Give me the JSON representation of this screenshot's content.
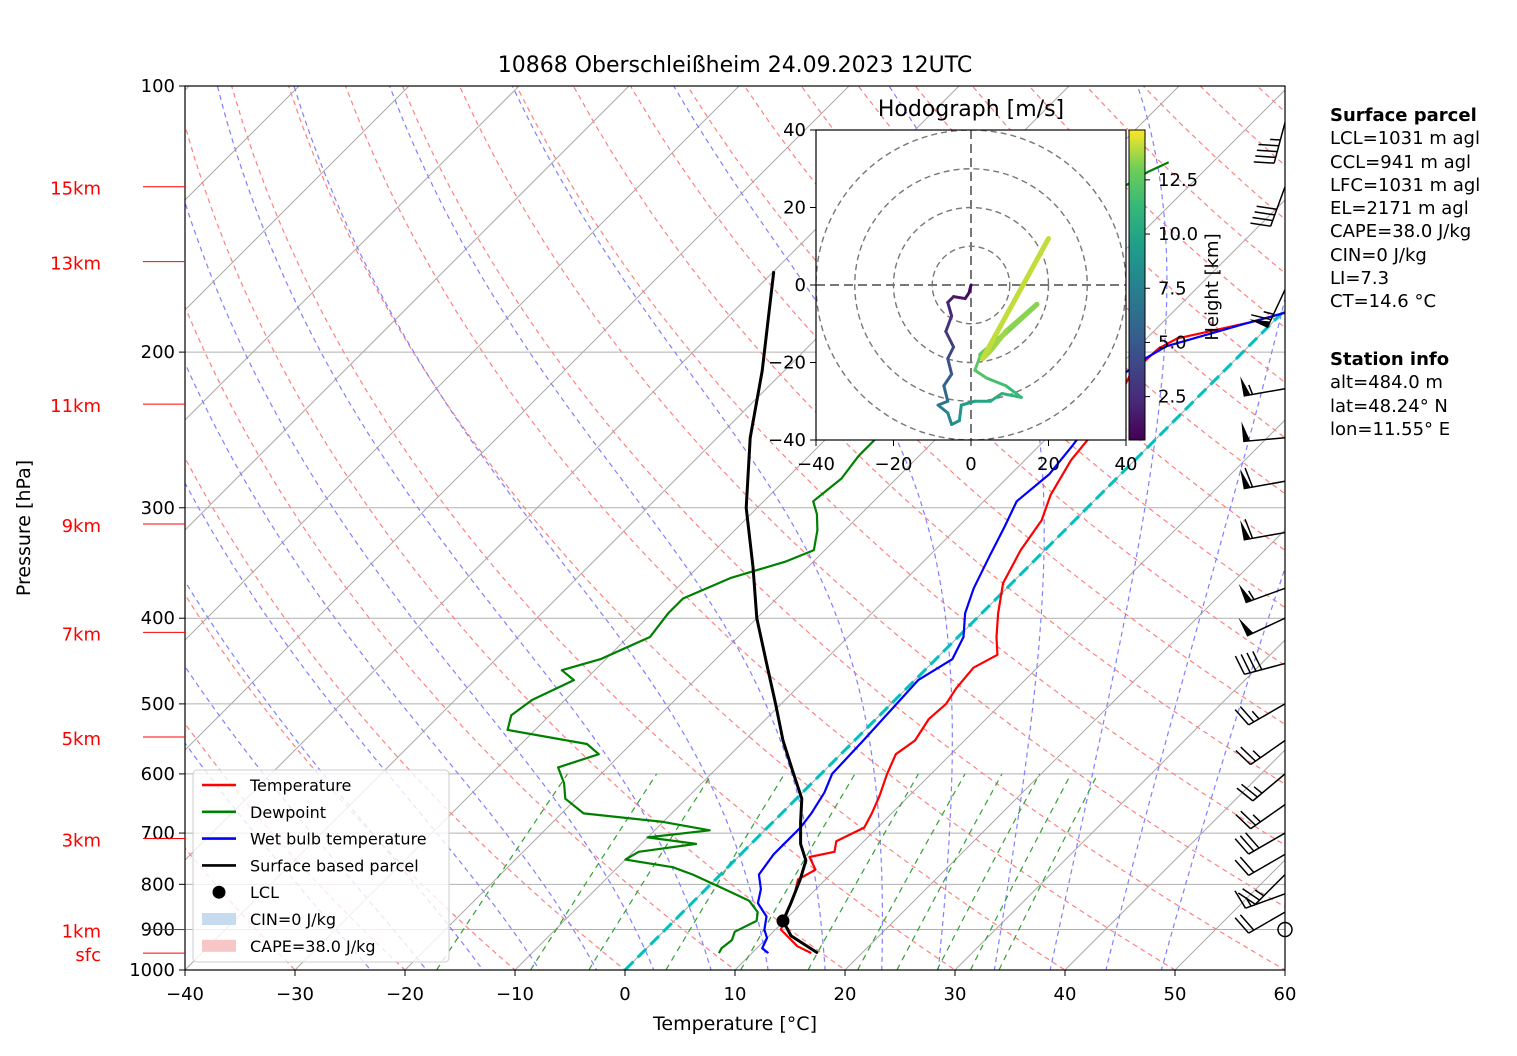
{
  "chart_data": [
    {
      "type": "line",
      "title": "10868 Oberschleißheim 24.09.2023 12UTC",
      "xlabel": "Temperature [°C]",
      "ylabel": "Pressure [hPa]",
      "xlim": [
        -40,
        60
      ],
      "ylim": [
        1000,
        100
      ],
      "y_scale": "log",
      "x_ticks": [
        "−40",
        "−30",
        "−20",
        "−10",
        "0",
        "10",
        "20",
        "30",
        "40",
        "50",
        "60"
      ],
      "y_ticks": [
        {
          "p": 100,
          "label": "100"
        },
        {
          "p": 200,
          "label": "200"
        },
        {
          "p": 300,
          "label": "300"
        },
        {
          "p": 400,
          "label": "400"
        },
        {
          "p": 500,
          "label": "500"
        },
        {
          "p": 600,
          "label": "600"
        },
        {
          "p": 700,
          "label": "700"
        },
        {
          "p": 800,
          "label": "800"
        },
        {
          "p": 900,
          "label": "900"
        },
        {
          "p": 1000,
          "label": "1000"
        }
      ],
      "height_labels": [
        {
          "p": 130,
          "label": "15km"
        },
        {
          "p": 158,
          "label": "13km"
        },
        {
          "p": 229,
          "label": "11km"
        },
        {
          "p": 313,
          "label": "9km"
        },
        {
          "p": 415,
          "label": "7km"
        },
        {
          "p": 545,
          "label": "5km"
        },
        {
          "p": 710,
          "label": "3km"
        },
        {
          "p": 900,
          "label": "1km"
        },
        {
          "p": 957,
          "label": "sfc"
        }
      ],
      "height_label_color": "#ff0000",
      "grid": true,
      "legend_position": "bottom-left",
      "legend": [
        {
          "label": "Temperature",
          "kind": "line",
          "color": "#ff0000"
        },
        {
          "label": "Dewpoint",
          "kind": "line",
          "color": "#008000"
        },
        {
          "label": "Wet bulb temperature",
          "kind": "line",
          "color": "#0000ff"
        },
        {
          "label": "Surface based parcel",
          "kind": "line",
          "color": "#000000"
        },
        {
          "label": "LCL",
          "kind": "dot",
          "color": "#000000"
        },
        {
          "label": "CIN=0 J/kg",
          "kind": "patch",
          "color": "#c6dbef"
        },
        {
          "label": "CAPE=38.0 J/kg",
          "kind": "patch",
          "color": "#f7c6c6"
        }
      ],
      "series": [
        {
          "name": "Temperature",
          "color": "#ff0000",
          "points": [
            [
              15.4,
              957
            ],
            [
              13.5,
              940
            ],
            [
              10.5,
              900
            ],
            [
              9.5,
              860
            ],
            [
              8.5,
              820
            ],
            [
              7.5,
              790
            ],
            [
              8.2,
              770
            ],
            [
              6.5,
              745
            ],
            [
              8.3,
              735
            ],
            [
              7.5,
              715
            ],
            [
              8.8,
              690
            ],
            [
              8.2,
              665
            ],
            [
              7.3,
              635
            ],
            [
              6.0,
              600
            ],
            [
              5.0,
              570
            ],
            [
              5.5,
              550
            ],
            [
              4.8,
              520
            ],
            [
              5.0,
              500
            ],
            [
              4.5,
              480
            ],
            [
              4.2,
              455
            ],
            [
              5.2,
              440
            ],
            [
              3.5,
              420
            ],
            [
              1.5,
              395
            ],
            [
              -0.8,
              365
            ],
            [
              -2.2,
              335
            ],
            [
              -3.0,
              310
            ],
            [
              -4.5,
              290
            ],
            [
              -5.8,
              265
            ],
            [
              -6.3,
              245
            ],
            [
              -7.0,
              227
            ],
            [
              -8.2,
              212
            ],
            [
              -8.0,
              198
            ],
            [
              -7.2,
              193
            ],
            [
              -2.0,
              185
            ],
            [
              0.5,
              180
            ],
            [
              1.2,
              172
            ],
            [
              2.3,
              164
            ],
            [
              2.8,
              158
            ],
            [
              1.8,
              151
            ],
            [
              1.0,
              145
            ],
            [
              0.8,
              140
            ],
            [
              1.5,
              135
            ],
            [
              1.5,
              129
            ],
            [
              1.2,
              125
            ],
            [
              2.0,
              121
            ],
            [
              3.8,
              120
            ]
          ]
        },
        {
          "name": "Dewpoint",
          "color": "#008000",
          "points": [
            [
              7.0,
              957
            ],
            [
              6.8,
              945
            ],
            [
              7.0,
              925
            ],
            [
              6.5,
              905
            ],
            [
              7.5,
              880
            ],
            [
              6.8,
              860
            ],
            [
              5.0,
              835
            ],
            [
              1.0,
              805
            ],
            [
              -2.5,
              780
            ],
            [
              -5.0,
              765
            ],
            [
              -10.0,
              750
            ],
            [
              -9.5,
              735
            ],
            [
              -5.0,
              720
            ],
            [
              -10.0,
              708
            ],
            [
              -5.0,
              695
            ],
            [
              -10.0,
              680
            ],
            [
              -18.0,
              665
            ],
            [
              -21.0,
              640
            ],
            [
              -22.5,
              615
            ],
            [
              -24.5,
              590
            ],
            [
              -22.0,
              570
            ],
            [
              -24.0,
              555
            ],
            [
              -32.5,
              535
            ],
            [
              -33.5,
              515
            ],
            [
              -33.0,
              495
            ],
            [
              -31.0,
              470
            ],
            [
              -33.0,
              458
            ],
            [
              -30.5,
              445
            ],
            [
              -28.0,
              420
            ],
            [
              -28.5,
              395
            ],
            [
              -28.5,
              380
            ],
            [
              -26.0,
              360
            ],
            [
              -22.5,
              345
            ],
            [
              -21.0,
              335
            ],
            [
              -22.5,
              318
            ],
            [
              -24.0,
              305
            ],
            [
              -25.5,
              295
            ],
            [
              -25.0,
              278
            ],
            [
              -25.5,
              262
            ],
            [
              -25.5,
              240
            ],
            [
              -26.0,
              225
            ],
            [
              -24.0,
              215
            ],
            [
              -25.5,
              208
            ],
            [
              -29.0,
              193
            ],
            [
              -32.0,
              185
            ],
            [
              -30.5,
              168
            ],
            [
              -28.5,
              150
            ],
            [
              -27.5,
              140
            ],
            [
              -25.0,
              125
            ],
            [
              -24.0,
              122
            ]
          ]
        },
        {
          "name": "Wet bulb temperature",
          "color": "#0000ff",
          "points": [
            [
              11.5,
              957
            ],
            [
              10.5,
              945
            ],
            [
              10.0,
              920
            ],
            [
              9.0,
              900
            ],
            [
              8.0,
              870
            ],
            [
              6.0,
              840
            ],
            [
              5.0,
              810
            ],
            [
              3.5,
              780
            ],
            [
              3.0,
              740
            ],
            [
              3.0,
              715
            ],
            [
              3.0,
              690
            ],
            [
              2.7,
              665
            ],
            [
              2.0,
              630
            ],
            [
              1.0,
              600
            ],
            [
              0.8,
              550
            ],
            [
              0.5,
              500
            ],
            [
              0.3,
              470
            ],
            [
              1.5,
              445
            ],
            [
              0.5,
              420
            ],
            [
              -1.5,
              395
            ],
            [
              -3.0,
              370
            ],
            [
              -4.5,
              340
            ],
            [
              -5.8,
              315
            ],
            [
              -7.0,
              295
            ],
            [
              -6.5,
              275
            ],
            [
              -7.0,
              255
            ],
            [
              -7.5,
              240
            ],
            [
              -8.5,
              225
            ],
            [
              -9.0,
              215
            ],
            [
              -8.5,
              205
            ],
            [
              -7.5,
              197
            ],
            [
              -2.5,
              186
            ],
            [
              0.5,
              180
            ],
            [
              1.0,
              172
            ],
            [
              2.5,
              165
            ],
            [
              2.0,
              157
            ],
            [
              1.0,
              150
            ],
            [
              0.5,
              145
            ],
            [
              0.7,
              140
            ],
            [
              1.2,
              135
            ],
            [
              1.0,
              129
            ],
            [
              1.0,
              125
            ],
            [
              1.5,
              121
            ],
            [
              3.5,
              120
            ]
          ]
        },
        {
          "name": "Surface based parcel",
          "color": "#000000",
          "points": [
            [
              16.0,
              957
            ],
            [
              12.0,
              915
            ],
            [
              9.9,
              880
            ],
            [
              9.0,
              840
            ],
            [
              7.7,
              790
            ],
            [
              6.5,
              752
            ],
            [
              4.5,
              720
            ],
            [
              2.5,
              680
            ],
            [
              0.5,
              640
            ],
            [
              -2.5,
              600
            ],
            [
              -6.5,
              550
            ],
            [
              -10.5,
              500
            ],
            [
              -15.0,
              450
            ],
            [
              -20.0,
              400
            ],
            [
              -25.0,
              350
            ],
            [
              -31.0,
              300
            ],
            [
              -37.0,
              250
            ],
            [
              -42.0,
              210
            ],
            [
              -50.0,
              162
            ]
          ]
        }
      ],
      "lcl_point": [
        9.9,
        880
      ],
      "background_lines": {
        "isotherms_color": "#aaaaaa",
        "dry_adiabats_color": "#ff8080",
        "moist_adiabats_color": "#8080ff",
        "mixing_ratio_color": "#33a033",
        "zero_isotherm_color": "#00bfbf"
      },
      "wind_barbs": [
        {
          "p": 900,
          "calm": true
        },
        {
          "p": 860,
          "spd_kt": 20,
          "dir": 240
        },
        {
          "p": 820,
          "spd_kt": 15,
          "dir": 250
        },
        {
          "p": 780,
          "spd_kt": 25,
          "dir": 225
        },
        {
          "p": 740,
          "spd_kt": 20,
          "dir": 240
        },
        {
          "p": 700,
          "spd_kt": 30,
          "dir": 240
        },
        {
          "p": 650,
          "spd_kt": 25,
          "dir": 235
        },
        {
          "p": 600,
          "spd_kt": 25,
          "dir": 230
        },
        {
          "p": 550,
          "spd_kt": 25,
          "dir": 235
        },
        {
          "p": 500,
          "spd_kt": 25,
          "dir": 240
        },
        {
          "p": 450,
          "spd_kt": 40,
          "dir": 255
        },
        {
          "p": 400,
          "spd_kt": 50,
          "dir": 245
        },
        {
          "p": 370,
          "spd_kt": 55,
          "dir": 250
        },
        {
          "p": 320,
          "spd_kt": 60,
          "dir": 260
        },
        {
          "p": 280,
          "spd_kt": 60,
          "dir": 260
        },
        {
          "p": 250,
          "spd_kt": 50,
          "dir": 265
        },
        {
          "p": 220,
          "spd_kt": 55,
          "dir": 260
        },
        {
          "p": 170,
          "spd_kt": 65,
          "dir": 205
        },
        {
          "p": 130,
          "spd_kt": 40,
          "dir": 200
        },
        {
          "p": 110,
          "spd_kt": 45,
          "dir": 195
        }
      ]
    },
    {
      "type": "line",
      "title": "Hodograph [m/s]",
      "xlim": [
        -40,
        40
      ],
      "ylim": [
        -40,
        40
      ],
      "x_ticks": [
        "−40",
        "−20",
        "0",
        "20",
        "40"
      ],
      "y_ticks": [
        "40",
        "20",
        "0",
        "−20",
        "−40"
      ],
      "rings": [
        10,
        20,
        30,
        40
      ],
      "colorbar": {
        "label": "Height [km]",
        "range": [
          0.5,
          14.8
        ],
        "ticks": [
          "2.5",
          "5.0",
          "7.5",
          "10.0",
          "12.5"
        ],
        "tick_values": [
          2.5,
          5.0,
          7.5,
          10.0,
          12.5
        ],
        "colormap": "viridis"
      },
      "hodograph": [
        {
          "u": 0,
          "v": 0,
          "z": 0.5
        },
        {
          "u": -0.5,
          "v": -2,
          "z": 0.8
        },
        {
          "u": -1.5,
          "v": -3.5,
          "z": 1.2
        },
        {
          "u": -4.5,
          "v": -3,
          "z": 1.6
        },
        {
          "u": -6,
          "v": -4.5,
          "z": 2.0
        },
        {
          "u": -5,
          "v": -8,
          "z": 2.5
        },
        {
          "u": -6.5,
          "v": -12,
          "z": 3.0
        },
        {
          "u": -4.5,
          "v": -16,
          "z": 3.6
        },
        {
          "u": -6,
          "v": -19,
          "z": 4.2
        },
        {
          "u": -5,
          "v": -23,
          "z": 4.9
        },
        {
          "u": -7,
          "v": -26,
          "z": 5.6
        },
        {
          "u": -6,
          "v": -30,
          "z": 6.3
        },
        {
          "u": -8.5,
          "v": -31,
          "z": 7.0
        },
        {
          "u": -6,
          "v": -33,
          "z": 7.6
        },
        {
          "u": -5,
          "v": -36,
          "z": 8.2
        },
        {
          "u": -3,
          "v": -35,
          "z": 8.7
        },
        {
          "u": -2.5,
          "v": -31,
          "z": 9.2
        },
        {
          "u": 1,
          "v": -30,
          "z": 9.7
        },
        {
          "u": 5,
          "v": -30,
          "z": 10.2
        },
        {
          "u": 8,
          "v": -28,
          "z": 10.7
        },
        {
          "u": 13,
          "v": -29,
          "z": 11.2
        },
        {
          "u": 9,
          "v": -26,
          "z": 11.6
        },
        {
          "u": 4,
          "v": -24,
          "z": 12.0
        },
        {
          "u": 1,
          "v": -22,
          "z": 12.3
        },
        {
          "u": 2.5,
          "v": -18,
          "z": 12.6
        },
        {
          "u": 6,
          "v": -15,
          "z": 12.9
        },
        {
          "u": 17,
          "v": -5,
          "z": 13.2
        },
        {
          "u": 9,
          "v": -12,
          "z": 13.5
        },
        {
          "u": 5,
          "v": -17,
          "z": 13.7
        },
        {
          "u": 3,
          "v": -19,
          "z": 13.9
        },
        {
          "u": 20,
          "v": 12,
          "z": 14.2
        }
      ]
    }
  ],
  "side_panel": {
    "surface_parcel": {
      "heading": "Surface parcel",
      "lines": [
        "LCL=1031 m agl",
        "CCL=941 m agl",
        "LFC=1031 m agl",
        "EL=2171 m agl",
        "CAPE=38.0 J/kg",
        "CIN=0 J/kg",
        "LI=7.3",
        "CT=14.6 °C"
      ]
    },
    "station_info": {
      "heading": "Station info",
      "lines": [
        "alt=484.0 m",
        "lat=48.24° N",
        "lon=11.55° E"
      ]
    }
  }
}
